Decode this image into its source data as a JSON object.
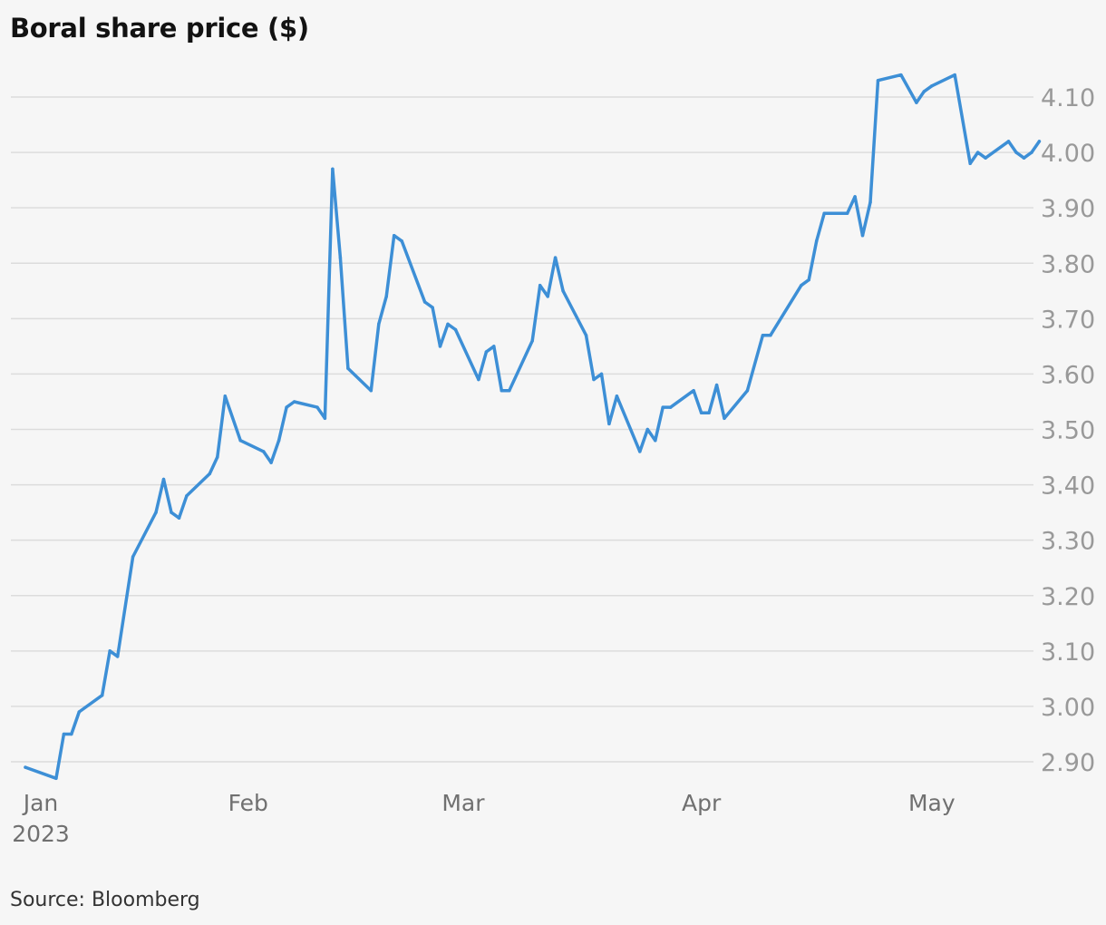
{
  "page": {
    "title": "Boral share price ($)",
    "source": "Source: Bloomberg"
  },
  "colors": {
    "line": "#3d8fd6",
    "grid": "#dcdcdc",
    "tick_text": "#999999",
    "x_tick_text": "#707070"
  },
  "chart_data": {
    "type": "line",
    "title": "Boral share price ($)",
    "xlabel": "",
    "ylabel": "",
    "ylim": [
      2.87,
      4.14
    ],
    "yticks": [
      2.9,
      3.0,
      3.1,
      3.2,
      3.3,
      3.4,
      3.5,
      3.6,
      3.7,
      3.8,
      3.9,
      4.0,
      4.1
    ],
    "ytick_labels": [
      "2.90",
      "3.00",
      "3.10",
      "3.20",
      "3.30",
      "3.40",
      "3.50",
      "3.60",
      "3.70",
      "3.80",
      "3.90",
      "4.00",
      "4.10"
    ],
    "xlim": [
      "2023-01-03",
      "2023-05-12"
    ],
    "xticks": [
      {
        "date": "2023-01-01",
        "label": "Jan",
        "sublabel": "2023"
      },
      {
        "date": "2023-02-01",
        "label": "Feb",
        "sublabel": ""
      },
      {
        "date": "2023-03-01",
        "label": "Mar",
        "sublabel": ""
      },
      {
        "date": "2023-04-01",
        "label": "Apr",
        "sublabel": ""
      },
      {
        "date": "2023-05-01",
        "label": "May",
        "sublabel": ""
      }
    ],
    "grid": true,
    "y_axis_side": "right",
    "series": [
      {
        "points": [
          [
            "2023-01-03",
            2.89
          ],
          [
            "2023-01-07",
            2.87
          ],
          [
            "2023-01-08",
            2.95
          ],
          [
            "2023-01-09",
            2.95
          ],
          [
            "2023-01-10",
            2.99
          ],
          [
            "2023-01-13",
            3.02
          ],
          [
            "2023-01-14",
            3.1
          ],
          [
            "2023-01-15",
            3.09
          ],
          [
            "2023-01-17",
            3.27
          ],
          [
            "2023-01-20",
            3.35
          ],
          [
            "2023-01-21",
            3.41
          ],
          [
            "2023-01-22",
            3.35
          ],
          [
            "2023-01-23",
            3.34
          ],
          [
            "2023-01-24",
            3.38
          ],
          [
            "2023-01-27",
            3.42
          ],
          [
            "2023-01-28",
            3.45
          ],
          [
            "2023-01-29",
            3.56
          ],
          [
            "2023-01-31",
            3.48
          ],
          [
            "2023-02-03",
            3.46
          ],
          [
            "2023-02-04",
            3.44
          ],
          [
            "2023-02-05",
            3.48
          ],
          [
            "2023-02-06",
            3.54
          ],
          [
            "2023-02-07",
            3.55
          ],
          [
            "2023-02-10",
            3.54
          ],
          [
            "2023-02-11",
            3.52
          ],
          [
            "2023-02-12",
            3.97
          ],
          [
            "2023-02-13",
            3.81
          ],
          [
            "2023-02-14",
            3.61
          ],
          [
            "2023-02-17",
            3.57
          ],
          [
            "2023-02-18",
            3.69
          ],
          [
            "2023-02-19",
            3.74
          ],
          [
            "2023-02-20",
            3.85
          ],
          [
            "2023-02-21",
            3.84
          ],
          [
            "2023-02-24",
            3.73
          ],
          [
            "2023-02-25",
            3.72
          ],
          [
            "2023-02-26",
            3.65
          ],
          [
            "2023-02-27",
            3.69
          ],
          [
            "2023-02-28",
            3.68
          ],
          [
            "2023-03-03",
            3.59
          ],
          [
            "2023-03-04",
            3.64
          ],
          [
            "2023-03-05",
            3.65
          ],
          [
            "2023-03-06",
            3.57
          ],
          [
            "2023-03-07",
            3.57
          ],
          [
            "2023-03-10",
            3.66
          ],
          [
            "2023-03-11",
            3.76
          ],
          [
            "2023-03-12",
            3.74
          ],
          [
            "2023-03-13",
            3.81
          ],
          [
            "2023-03-14",
            3.75
          ],
          [
            "2023-03-17",
            3.67
          ],
          [
            "2023-03-18",
            3.59
          ],
          [
            "2023-03-19",
            3.6
          ],
          [
            "2023-03-20",
            3.51
          ],
          [
            "2023-03-21",
            3.56
          ],
          [
            "2023-03-24",
            3.46
          ],
          [
            "2023-03-25",
            3.5
          ],
          [
            "2023-03-26",
            3.48
          ],
          [
            "2023-03-27",
            3.54
          ],
          [
            "2023-03-28",
            3.54
          ],
          [
            "2023-03-31",
            3.57
          ],
          [
            "2023-04-01",
            3.53
          ],
          [
            "2023-04-02",
            3.53
          ],
          [
            "2023-04-03",
            3.58
          ],
          [
            "2023-04-04",
            3.52
          ],
          [
            "2023-04-07",
            3.57
          ],
          [
            "2023-04-09",
            3.67
          ],
          [
            "2023-04-10",
            3.67
          ],
          [
            "2023-04-14",
            3.76
          ],
          [
            "2023-04-15",
            3.77
          ],
          [
            "2023-04-16",
            3.84
          ],
          [
            "2023-04-17",
            3.89
          ],
          [
            "2023-04-20",
            3.89
          ],
          [
            "2023-04-21",
            3.92
          ],
          [
            "2023-04-22",
            3.85
          ],
          [
            "2023-04-23",
            3.91
          ],
          [
            "2023-04-24",
            4.13
          ],
          [
            "2023-04-27",
            4.14
          ],
          [
            "2023-04-29",
            4.09
          ],
          [
            "2023-04-30",
            4.11
          ],
          [
            "2023-05-01",
            4.12
          ],
          [
            "2023-05-04",
            4.14
          ],
          [
            "2023-05-06",
            3.98
          ],
          [
            "2023-05-07",
            4.0
          ],
          [
            "2023-05-08",
            3.99
          ],
          [
            "2023-05-11",
            4.02
          ],
          [
            "2023-05-12",
            4.0
          ],
          [
            "2023-05-13",
            3.99
          ],
          [
            "2023-05-14",
            4.0
          ],
          [
            "2023-05-15",
            4.02
          ]
        ]
      }
    ]
  }
}
